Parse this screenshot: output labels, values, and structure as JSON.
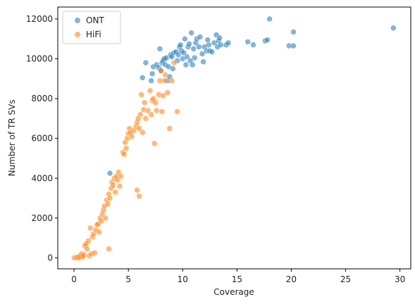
{
  "chart_data": {
    "type": "scatter",
    "title": "",
    "xlabel": "Coverage",
    "ylabel": "Number of TR SVs",
    "xlim": [
      -1.5,
      31
    ],
    "ylim": [
      -550,
      12600
    ],
    "xticks": [
      0,
      5,
      10,
      15,
      20,
      25,
      30
    ],
    "yticks": [
      0,
      2000,
      4000,
      6000,
      8000,
      10000,
      12000
    ],
    "grid": false,
    "legend_position": "top-left",
    "series": [
      {
        "name": "ONT",
        "color": "#1f77b4",
        "points": [
          [
            3.3,
            4250
          ],
          [
            6.3,
            9050
          ],
          [
            6.6,
            9800
          ],
          [
            7.1,
            8900
          ],
          [
            7.2,
            9250
          ],
          [
            7.3,
            9600
          ],
          [
            7.6,
            9700
          ],
          [
            7.8,
            9550
          ],
          [
            7.9,
            10500
          ],
          [
            8.0,
            9400
          ],
          [
            8.1,
            9800
          ],
          [
            8.2,
            9900
          ],
          [
            8.3,
            10000
          ],
          [
            8.4,
            9700
          ],
          [
            8.5,
            10050
          ],
          [
            8.6,
            8900
          ],
          [
            8.7,
            9600
          ],
          [
            8.8,
            9100
          ],
          [
            8.9,
            10200
          ],
          [
            9.0,
            10100
          ],
          [
            9.1,
            9500
          ],
          [
            9.2,
            10300
          ],
          [
            9.4,
            10350
          ],
          [
            9.5,
            9900
          ],
          [
            9.6,
            10200
          ],
          [
            9.7,
            10600
          ],
          [
            9.8,
            10700
          ],
          [
            9.9,
            10400
          ],
          [
            10.0,
            10000
          ],
          [
            10.1,
            10300
          ],
          [
            10.2,
            11000
          ],
          [
            10.3,
            9700
          ],
          [
            10.4,
            10100
          ],
          [
            10.5,
            10600
          ],
          [
            10.6,
            10750
          ],
          [
            10.7,
            9900
          ],
          [
            10.8,
            11300
          ],
          [
            10.9,
            9700
          ],
          [
            11.0,
            10500
          ],
          [
            11.1,
            10050
          ],
          [
            11.2,
            10800
          ],
          [
            11.3,
            11000
          ],
          [
            11.5,
            10600
          ],
          [
            11.6,
            11100
          ],
          [
            11.8,
            10250
          ],
          [
            11.9,
            9850
          ],
          [
            12.0,
            10600
          ],
          [
            12.2,
            10400
          ],
          [
            12.3,
            10950
          ],
          [
            12.4,
            10700
          ],
          [
            12.5,
            10400
          ],
          [
            12.7,
            10350
          ],
          [
            12.9,
            10800
          ],
          [
            13.1,
            11200
          ],
          [
            13.2,
            10600
          ],
          [
            13.3,
            10900
          ],
          [
            13.4,
            11050
          ],
          [
            13.5,
            10700
          ],
          [
            14.0,
            10700
          ],
          [
            14.2,
            10800
          ],
          [
            16.0,
            10850
          ],
          [
            16.5,
            10700
          ],
          [
            17.6,
            10900
          ],
          [
            17.8,
            10950
          ],
          [
            18.0,
            12000
          ],
          [
            19.8,
            10650
          ],
          [
            20.2,
            10650
          ],
          [
            20.2,
            11350
          ],
          [
            29.4,
            11550
          ]
        ]
      },
      {
        "name": "HiFi",
        "color": "#ff7f0e",
        "points": [
          [
            0.0,
            0
          ],
          [
            0.1,
            20
          ],
          [
            0.2,
            10
          ],
          [
            0.3,
            30
          ],
          [
            0.4,
            50
          ],
          [
            0.5,
            0
          ],
          [
            0.6,
            100
          ],
          [
            0.7,
            200
          ],
          [
            0.8,
            50
          ],
          [
            0.9,
            150
          ],
          [
            1.0,
            600
          ],
          [
            1.1,
            700
          ],
          [
            1.2,
            450
          ],
          [
            1.3,
            850
          ],
          [
            1.4,
            100
          ],
          [
            1.5,
            1500
          ],
          [
            1.6,
            200
          ],
          [
            1.7,
            1050
          ],
          [
            1.8,
            1200
          ],
          [
            1.9,
            250
          ],
          [
            2.0,
            1400
          ],
          [
            2.1,
            1650
          ],
          [
            2.2,
            1700
          ],
          [
            2.3,
            1300
          ],
          [
            2.4,
            2000
          ],
          [
            2.5,
            1850
          ],
          [
            2.6,
            2200
          ],
          [
            2.7,
            2400
          ],
          [
            2.8,
            2600
          ],
          [
            2.9,
            2000
          ],
          [
            3.0,
            2900
          ],
          [
            3.1,
            2700
          ],
          [
            3.2,
            450
          ],
          [
            3.2,
            3200
          ],
          [
            3.3,
            3000
          ],
          [
            3.4,
            3500
          ],
          [
            3.5,
            3800
          ],
          [
            3.6,
            3650
          ],
          [
            3.7,
            4000
          ],
          [
            3.8,
            3300
          ],
          [
            3.9,
            4100
          ],
          [
            4.0,
            3900
          ],
          [
            4.1,
            4300
          ],
          [
            4.2,
            3600
          ],
          [
            4.3,
            4100
          ],
          [
            4.5,
            5300
          ],
          [
            4.6,
            5200
          ],
          [
            4.7,
            5800
          ],
          [
            4.8,
            5500
          ],
          [
            4.9,
            6000
          ],
          [
            5.0,
            6250
          ],
          [
            5.1,
            6500
          ],
          [
            5.2,
            6300
          ],
          [
            5.3,
            6100
          ],
          [
            5.5,
            6400
          ],
          [
            5.7,
            6600
          ],
          [
            5.8,
            3400
          ],
          [
            5.8,
            6800
          ],
          [
            5.9,
            7000
          ],
          [
            6.0,
            3100
          ],
          [
            6.0,
            6500
          ],
          [
            6.1,
            7200
          ],
          [
            6.2,
            8200
          ],
          [
            6.3,
            6300
          ],
          [
            6.4,
            7450
          ],
          [
            6.5,
            7800
          ],
          [
            6.6,
            7000
          ],
          [
            6.8,
            7400
          ],
          [
            7.0,
            8400
          ],
          [
            7.1,
            7200
          ],
          [
            7.2,
            7900
          ],
          [
            7.3,
            8000
          ],
          [
            7.4,
            5750
          ],
          [
            7.5,
            7800
          ],
          [
            7.6,
            7400
          ],
          [
            7.8,
            8200
          ],
          [
            7.9,
            8900
          ],
          [
            8.0,
            9400
          ],
          [
            8.1,
            7350
          ],
          [
            8.2,
            8150
          ],
          [
            8.3,
            8900
          ],
          [
            8.4,
            9200
          ],
          [
            8.6,
            8300
          ],
          [
            8.8,
            6500
          ],
          [
            9.0,
            8900
          ],
          [
            9.2,
            9800
          ],
          [
            9.5,
            7350
          ]
        ]
      }
    ]
  }
}
